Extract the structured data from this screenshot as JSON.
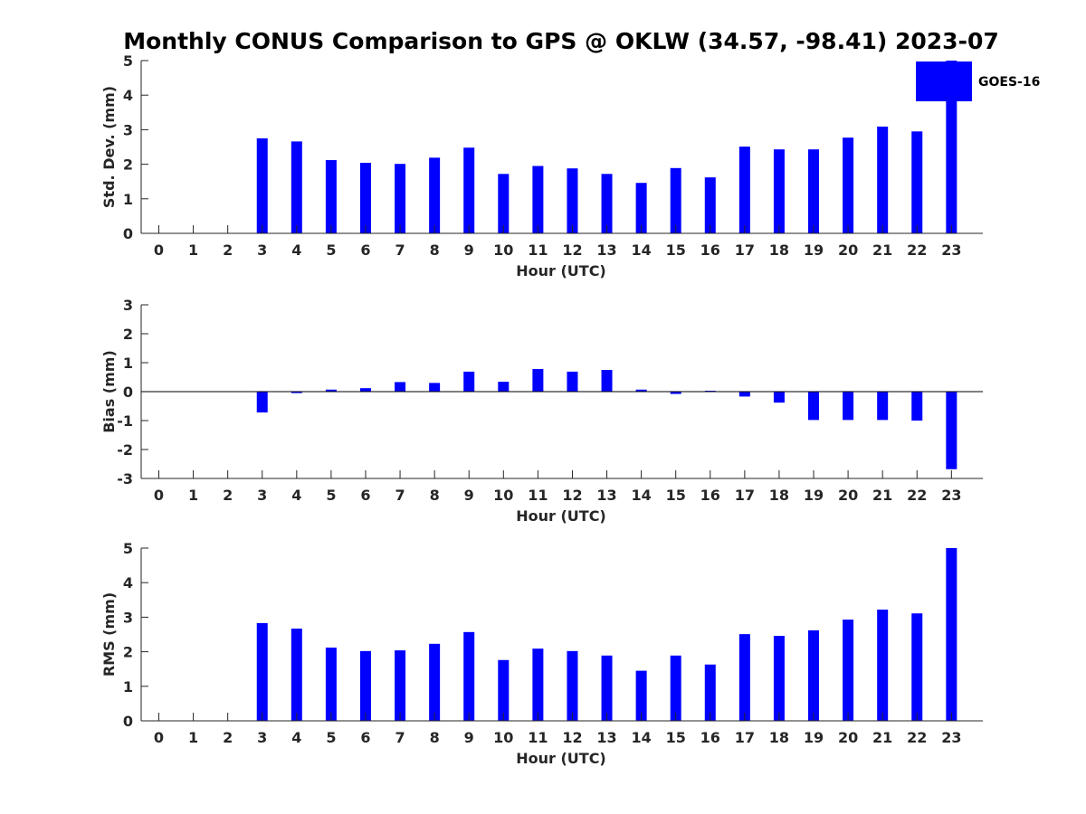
{
  "figure_title": "Monthly CONUS Comparison to GPS @ OKLW (34.57, -98.41) 2023-07",
  "legend": {
    "label": "GOES-16",
    "color": "#0000ff"
  },
  "chart_data": [
    {
      "type": "bar",
      "name": "std-dev",
      "categories": [
        "0",
        "1",
        "2",
        "3",
        "4",
        "5",
        "6",
        "7",
        "8",
        "9",
        "10",
        "11",
        "12",
        "13",
        "14",
        "15",
        "16",
        "17",
        "18",
        "19",
        "20",
        "21",
        "22",
        "23"
      ],
      "values": [
        null,
        null,
        null,
        2.75,
        2.66,
        2.12,
        2.04,
        2.01,
        2.19,
        2.48,
        1.72,
        1.95,
        1.88,
        1.72,
        1.46,
        1.89,
        1.62,
        2.51,
        2.43,
        2.43,
        2.77,
        3.09,
        2.95,
        5.0
      ],
      "xlabel": "Hour (UTC)",
      "ylabel": "Std. Dev. (mm)",
      "ylim": [
        0,
        5
      ],
      "yticks": [
        "0",
        "1",
        "2",
        "3",
        "4",
        "5"
      ],
      "color": "#0000ff"
    },
    {
      "type": "bar",
      "name": "bias",
      "categories": [
        "0",
        "1",
        "2",
        "3",
        "4",
        "5",
        "6",
        "7",
        "8",
        "9",
        "10",
        "11",
        "12",
        "13",
        "14",
        "15",
        "16",
        "17",
        "18",
        "19",
        "20",
        "21",
        "22",
        "23"
      ],
      "values": [
        null,
        null,
        null,
        -0.72,
        -0.05,
        0.07,
        0.12,
        0.33,
        0.3,
        0.69,
        0.34,
        0.78,
        0.69,
        0.75,
        0.07,
        -0.08,
        0.03,
        -0.17,
        -0.38,
        -0.98,
        -0.98,
        -0.98,
        -1.0,
        -2.68
      ],
      "xlabel": "Hour (UTC)",
      "ylabel": "Bias (mm)",
      "ylim": [
        -3,
        3
      ],
      "yticks": [
        "-3",
        "-2",
        "-1",
        "0",
        "1",
        "2",
        "3"
      ],
      "color": "#0000ff"
    },
    {
      "type": "bar",
      "name": "rms",
      "categories": [
        "0",
        "1",
        "2",
        "3",
        "4",
        "5",
        "6",
        "7",
        "8",
        "9",
        "10",
        "11",
        "12",
        "13",
        "14",
        "15",
        "16",
        "17",
        "18",
        "19",
        "20",
        "21",
        "22",
        "23"
      ],
      "values": [
        null,
        null,
        null,
        2.83,
        2.67,
        2.12,
        2.02,
        2.04,
        2.23,
        2.57,
        1.76,
        2.09,
        2.02,
        1.89,
        1.45,
        1.89,
        1.63,
        2.51,
        2.46,
        2.62,
        2.93,
        3.22,
        3.11,
        5.0
      ],
      "xlabel": "Hour (UTC)",
      "ylabel": "RMS (mm)",
      "ylim": [
        0,
        5
      ],
      "yticks": [
        "0",
        "1",
        "2",
        "3",
        "4",
        "5"
      ],
      "color": "#0000ff"
    }
  ]
}
